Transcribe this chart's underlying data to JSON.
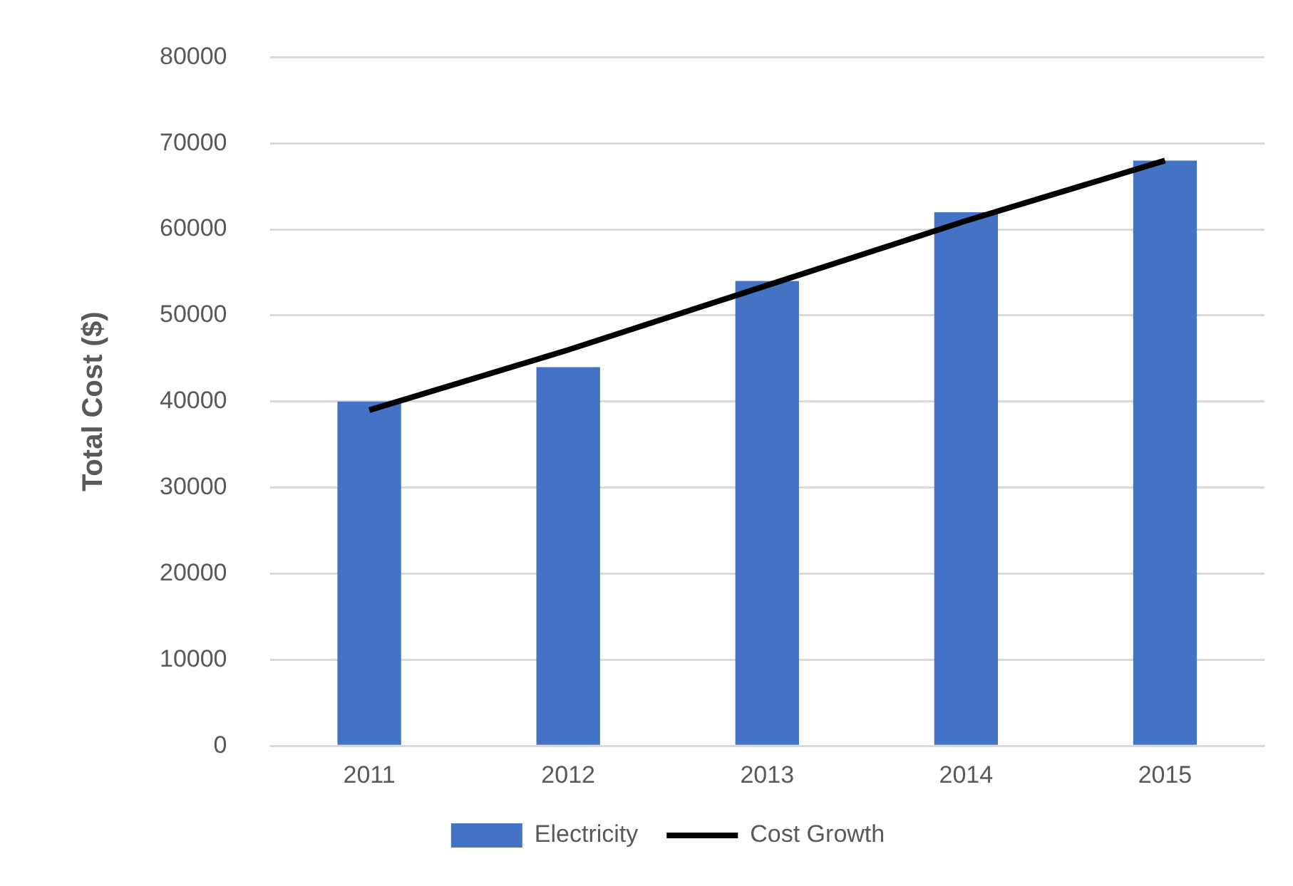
{
  "chart_data": {
    "type": "bar",
    "ylabel": "Total Cost ($)",
    "categories": [
      "2011",
      "2012",
      "2013",
      "2014",
      "2015"
    ],
    "series": [
      {
        "name": "Electricity",
        "color": "#4472c4",
        "values": [
          40000,
          44000,
          54000,
          62000,
          68000
        ]
      },
      {
        "name": "Cost Growth",
        "type": "line",
        "color": "#000000",
        "values": [
          39000,
          46000,
          53500,
          61000,
          68000
        ],
        "marker": "none",
        "line_style": "solid"
      }
    ],
    "ylim": [
      0,
      80000
    ],
    "yticks": [
      0,
      10000,
      20000,
      30000,
      40000,
      50000,
      60000,
      70000,
      80000
    ],
    "grid": "y",
    "legend": "bottom"
  }
}
